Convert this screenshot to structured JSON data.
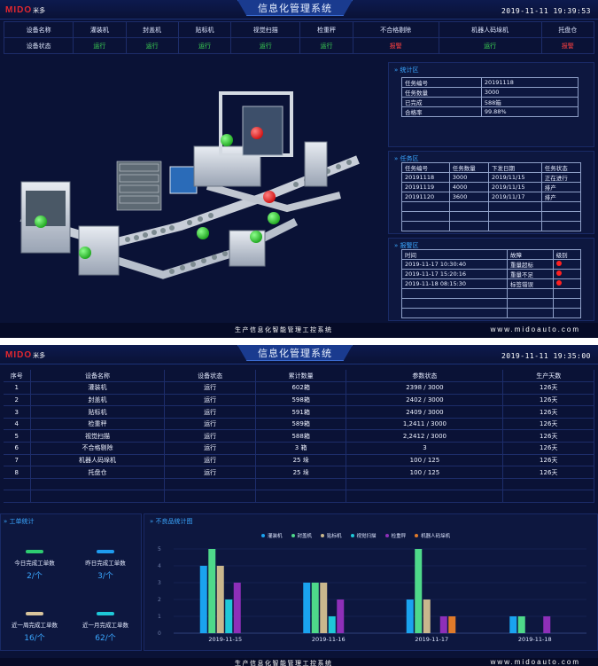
{
  "logo": {
    "mark": "MIDO",
    "cn": "米多"
  },
  "title": "信息化管理系统",
  "screen1": {
    "datetime": "2019-11-11 19:39:53",
    "status_header": [
      "设备名称",
      "灌装机",
      "封盖机",
      "贴标机",
      "视觉扫描",
      "检重秤",
      "不合格剔除",
      "机器人码垛机",
      "托盘仓"
    ],
    "status_row": [
      "设备状态",
      "运行",
      "运行",
      "运行",
      "运行",
      "运行",
      "报警",
      "运行",
      "报警"
    ],
    "stats": {
      "title": "» 统计区",
      "rows": [
        [
          "任务编号",
          "20191118"
        ],
        [
          "任务数量",
          "3000"
        ],
        [
          "已完成",
          "588箱"
        ],
        [
          "合格率",
          "99.88%"
        ]
      ]
    },
    "tasks": {
      "title": "» 任务区",
      "header": [
        "任务编号",
        "任务数量",
        "下发日期",
        "任务状态"
      ],
      "rows": [
        [
          "20191118",
          "3000",
          "2019/11/15",
          "正在进行"
        ],
        [
          "20191119",
          "4000",
          "2019/11/15",
          "排产"
        ],
        [
          "20191120",
          "3600",
          "2019/11/17",
          "排产"
        ]
      ]
    },
    "alarms": {
      "title": "» 报警区",
      "header": [
        "时间",
        "故障",
        "级别"
      ],
      "rows": [
        [
          "2019-11-17 10:30:40",
          "重量超标"
        ],
        [
          "2019-11-17 15:20:16",
          "重量不足"
        ],
        [
          "2019-11-18 08:15:30",
          "标签错误"
        ]
      ]
    },
    "footer_text": "生产信息化智能管理工控系统",
    "footer_url": "www.midoauto.com"
  },
  "screen2": {
    "datetime": "2019-11-11 19:35:00",
    "header": [
      "序号",
      "设备名称",
      "设备状态",
      "累计数量",
      "参数状态",
      "生产天数"
    ],
    "rows": [
      [
        "1",
        "灌装机",
        "运行",
        "602箱",
        "2398 / 3000",
        "126天"
      ],
      [
        "2",
        "封盖机",
        "运行",
        "598箱",
        "2402 / 3000",
        "126天"
      ],
      [
        "3",
        "贴标机",
        "运行",
        "591箱",
        "2409 / 3000",
        "126天"
      ],
      [
        "4",
        "检重秤",
        "运行",
        "589箱",
        "1,2411 / 3000",
        "126天"
      ],
      [
        "5",
        "视觉扫描",
        "运行",
        "588箱",
        "2,2412 / 3000",
        "126天"
      ],
      [
        "6",
        "不合格剔除",
        "运行",
        "3 箱",
        "3",
        "126天"
      ],
      [
        "7",
        "机器人码垛机",
        "运行",
        "25 垛",
        "100  / 125",
        "126天"
      ],
      [
        "8",
        "托盘仓",
        "运行",
        "25 垛",
        "100  / 125",
        "126天"
      ]
    ],
    "work_orders": {
      "title": "» 工单统计",
      "cards": [
        {
          "label": "今日完成工单数",
          "value": "2/个",
          "color": "#2ecc71"
        },
        {
          "label": "昨日完成工单数",
          "value": "3/个",
          "color": "#1e9bef"
        },
        {
          "label": "近一周完成工单数",
          "value": "16/个",
          "color": "#d8c49c"
        },
        {
          "label": "近一月完成工单数",
          "value": "62/个",
          "color": "#1ec8d8"
        }
      ]
    },
    "chart_title": "» 不良品统计图",
    "footer_text": "生产信息化智能管理工控系统",
    "footer_url": "www.midoauto.com"
  },
  "chart_data": {
    "type": "bar",
    "categories": [
      "2019-11-15",
      "2019-11-16",
      "2019-11-17",
      "2019-11-18"
    ],
    "series": [
      {
        "name": "灌装机",
        "color": "#1aa3ef",
        "values": [
          4,
          3,
          2,
          1
        ]
      },
      {
        "name": "封盖机",
        "color": "#4ed98a",
        "values": [
          5,
          3,
          5,
          1
        ]
      },
      {
        "name": "贴标机",
        "color": "#c9b78d",
        "values": [
          4,
          3,
          2,
          0
        ]
      },
      {
        "name": "视觉扫描",
        "color": "#1ec8d8",
        "values": [
          2,
          1,
          0,
          0
        ]
      },
      {
        "name": "检重秤",
        "color": "#8e2fb8",
        "values": [
          3,
          2,
          1,
          1
        ]
      },
      {
        "name": "机器人码垛机",
        "color": "#e07a2a",
        "values": [
          0,
          0,
          1,
          0
        ]
      }
    ],
    "ylim": [
      0,
      5
    ],
    "yticks": [
      "0",
      "1",
      "2",
      "3",
      "4",
      "5"
    ],
    "grid": true,
    "legend": "top"
  }
}
